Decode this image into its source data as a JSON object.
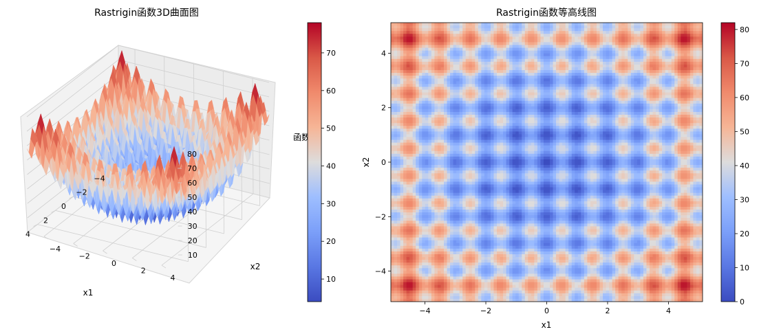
{
  "chart_data": [
    {
      "type": "surface3d",
      "function": "rastrigin",
      "title": "Rastrigin函数3D曲面图",
      "xlabel": "x1",
      "ylabel": "x2",
      "zlabel": "函数值",
      "xlim": [
        -5.12,
        5.12
      ],
      "ylim": [
        -5.12,
        5.12
      ],
      "zlim": [
        0,
        80
      ],
      "x_ticks": [
        "−4",
        "−2",
        "0",
        "2",
        "4"
      ],
      "y_ticks": [
        "−4",
        "−2",
        "0",
        "2",
        "4"
      ],
      "z_ticks": [
        "10",
        "20",
        "30",
        "40",
        "50",
        "60",
        "70",
        "80"
      ],
      "colormap": "coolwarm",
      "colorbar": {
        "range": [
          4,
          78
        ],
        "ticks": [
          "10",
          "20",
          "30",
          "40",
          "50",
          "60",
          "70"
        ]
      },
      "grid": true
    },
    {
      "type": "heatmap",
      "function": "rastrigin",
      "title": "Rastrigin函数等高线图",
      "xlabel": "x1",
      "ylabel": "x2",
      "xlim": [
        -5.12,
        5.12
      ],
      "ylim": [
        -5.12,
        5.12
      ],
      "x_ticks": [
        "−4",
        "−2",
        "0",
        "2",
        "4"
      ],
      "y_ticks": [
        "−4",
        "−2",
        "0",
        "2",
        "4"
      ],
      "value_range": [
        0,
        82
      ],
      "colormap": "coolwarm",
      "colorbar": {
        "range": [
          0,
          82
        ],
        "ticks": [
          "0",
          "10",
          "20",
          "30",
          "40",
          "50",
          "60",
          "70",
          "80"
        ]
      }
    }
  ]
}
